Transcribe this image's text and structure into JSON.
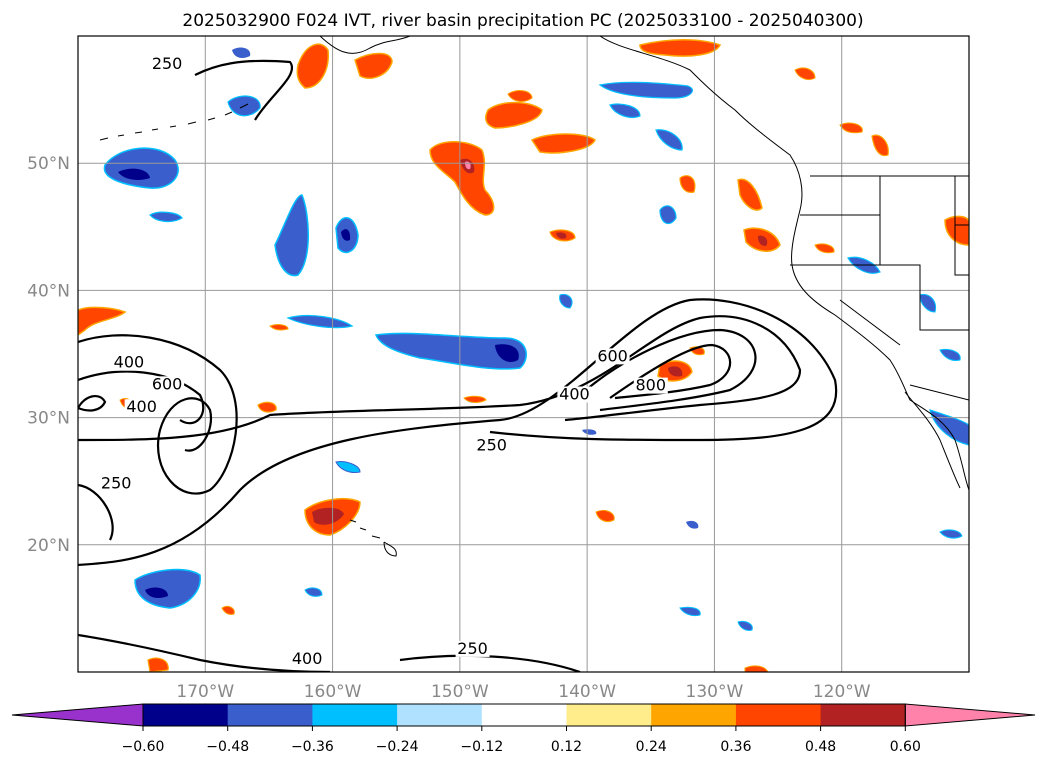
{
  "title": "2025032900 F024 IVT, river basin precipitation PC (2025033100 - 2025040300)",
  "map": {
    "lon_range": [
      -180,
      -110
    ],
    "lat_range": [
      10,
      60
    ],
    "grid": true,
    "lon_ticks": [
      {
        "value": -170,
        "label": "170°W"
      },
      {
        "value": -160,
        "label": "160°W"
      },
      {
        "value": -150,
        "label": "150°W"
      },
      {
        "value": -140,
        "label": "140°W"
      },
      {
        "value": -130,
        "label": "130°W"
      },
      {
        "value": -120,
        "label": "120°W"
      }
    ],
    "lat_ticks": [
      {
        "value": 20,
        "label": "20°N"
      },
      {
        "value": 30,
        "label": "30°N"
      },
      {
        "value": 40,
        "label": "40°N"
      },
      {
        "value": 50,
        "label": "50°N"
      }
    ],
    "contour_labels": [
      {
        "text": "250",
        "lon": -173,
        "lat": 57.5
      },
      {
        "text": "400",
        "lon": -176,
        "lat": 34.0
      },
      {
        "text": "600",
        "lon": -173,
        "lat": 32.3
      },
      {
        "text": "400",
        "lon": -175,
        "lat": 30.5
      },
      {
        "text": "250",
        "lon": -177,
        "lat": 24.5
      },
      {
        "text": "400",
        "lon": -141,
        "lat": 31.5
      },
      {
        "text": "600",
        "lon": -138,
        "lat": 34.5
      },
      {
        "text": "800",
        "lon": -135,
        "lat": 32.2
      },
      {
        "text": "250",
        "lon": -147.5,
        "lat": 27.5
      },
      {
        "text": "250",
        "lon": -149,
        "lat": 11.5
      },
      {
        "text": "400",
        "lon": -162,
        "lat": 10.7
      }
    ]
  },
  "colorbar": {
    "colors": [
      "#9932cc",
      "#00008b",
      "#3a5fcd",
      "#00bfff",
      "#b0e2ff",
      "#ffffff",
      "#ffec8b",
      "#ffa500",
      "#ff4500",
      "#b22222",
      "#ff82ab"
    ],
    "tick_labels": [
      "−0.60",
      "−0.48",
      "−0.36",
      "−0.24",
      "−0.12",
      "0.12",
      "0.24",
      "0.36",
      "0.48",
      "0.60"
    ]
  }
}
